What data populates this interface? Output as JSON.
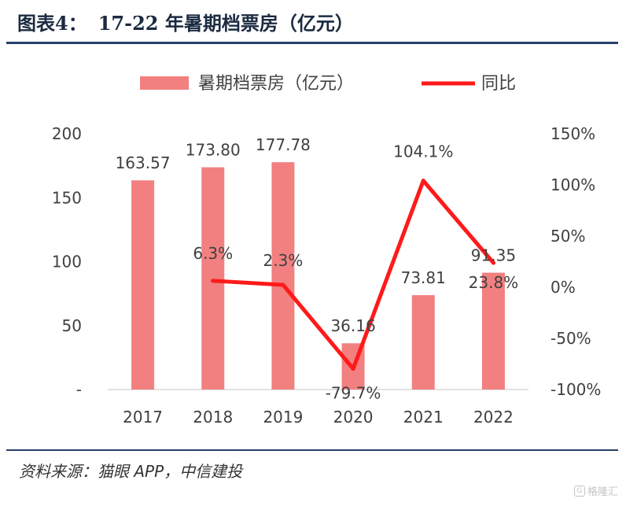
{
  "header": {
    "figure_label": "图表4：",
    "title": "17-22 年暑期档票房（亿元）"
  },
  "footer": {
    "source": "资料来源：猫眼 APP，中信建投",
    "watermark": "格隆汇",
    "watermark_icon": "g-logo-icon"
  },
  "chart_data": {
    "type": "bar",
    "categories": [
      "2017",
      "2018",
      "2019",
      "2020",
      "2021",
      "2022"
    ],
    "series": [
      {
        "name": "暑期档票房（亿元）",
        "type": "bar",
        "axis": "left",
        "color": "#f28080",
        "values": [
          163.57,
          173.8,
          177.78,
          36.16,
          73.81,
          91.35
        ],
        "labels": [
          "163.57",
          "173.80",
          "177.78",
          "36.16",
          "73.81",
          "91.35"
        ]
      },
      {
        "name": "同比",
        "type": "line",
        "axis": "right",
        "color": "#ff1a1a",
        "values": [
          null,
          6.3,
          2.3,
          -79.7,
          104.1,
          23.8
        ],
        "labels": [
          "",
          "6.3%",
          "2.3%",
          "-79.7%",
          "104.1%",
          "23.8%"
        ]
      }
    ],
    "y_left": {
      "range": [
        0,
        200
      ],
      "ticks": [
        0,
        50,
        100,
        150,
        200
      ],
      "tick_labels": [
        "-",
        "50",
        "100",
        "150",
        "200"
      ]
    },
    "y_right": {
      "range": [
        -100,
        150
      ],
      "ticks": [
        -100,
        -50,
        0,
        50,
        100,
        150
      ],
      "tick_labels": [
        "-100%",
        "-50%",
        "0%",
        "50%",
        "100%",
        "150%"
      ]
    },
    "legend_position": "top",
    "grid": false
  }
}
